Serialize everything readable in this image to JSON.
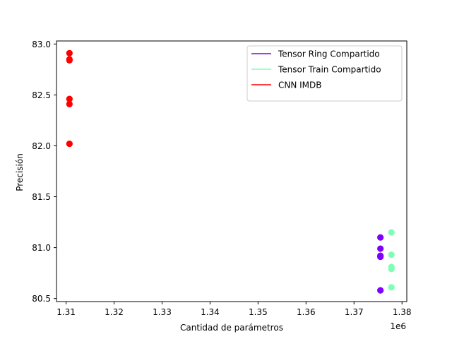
{
  "chart_data": {
    "type": "scatter",
    "title": "",
    "xlabel": "Cantidad de parámetros",
    "ylabel": "Precisión",
    "x_offset_label": "1e6",
    "xlim": [
      1308000,
      1381000
    ],
    "ylim": [
      80.47,
      83.03
    ],
    "x_ticks": [
      1310000,
      1320000,
      1330000,
      1340000,
      1350000,
      1360000,
      1370000,
      1380000
    ],
    "x_tick_labels": [
      "1.31",
      "1.32",
      "1.33",
      "1.34",
      "1.35",
      "1.36",
      "1.37",
      "1.38"
    ],
    "y_ticks": [
      80.5,
      81.0,
      81.5,
      82.0,
      82.5,
      83.0
    ],
    "y_tick_labels": [
      "80.5",
      "81.0",
      "81.5",
      "82.0",
      "82.5",
      "83.0"
    ],
    "grid": false,
    "legend_position": "top-right",
    "series": [
      {
        "name": "Tensor Ring Compartido",
        "color": "#8000ff",
        "points": [
          {
            "x": 1375500,
            "y": 81.1
          },
          {
            "x": 1375500,
            "y": 80.99
          },
          {
            "x": 1375500,
            "y": 80.92
          },
          {
            "x": 1375500,
            "y": 80.91
          },
          {
            "x": 1375500,
            "y": 80.58
          }
        ]
      },
      {
        "name": "Tensor Train Compartido",
        "color": "#80ffb4",
        "points": [
          {
            "x": 1377800,
            "y": 81.15
          },
          {
            "x": 1377800,
            "y": 80.93
          },
          {
            "x": 1377800,
            "y": 80.81
          },
          {
            "x": 1377800,
            "y": 80.79
          },
          {
            "x": 1377800,
            "y": 80.61
          }
        ]
      },
      {
        "name": "CNN IMDB",
        "color": "#ff0000",
        "points": [
          {
            "x": 1310700,
            "y": 82.91
          },
          {
            "x": 1310700,
            "y": 82.85
          },
          {
            "x": 1310700,
            "y": 82.84
          },
          {
            "x": 1310700,
            "y": 82.46
          },
          {
            "x": 1310700,
            "y": 82.41
          },
          {
            "x": 1310700,
            "y": 82.02
          }
        ]
      }
    ]
  }
}
